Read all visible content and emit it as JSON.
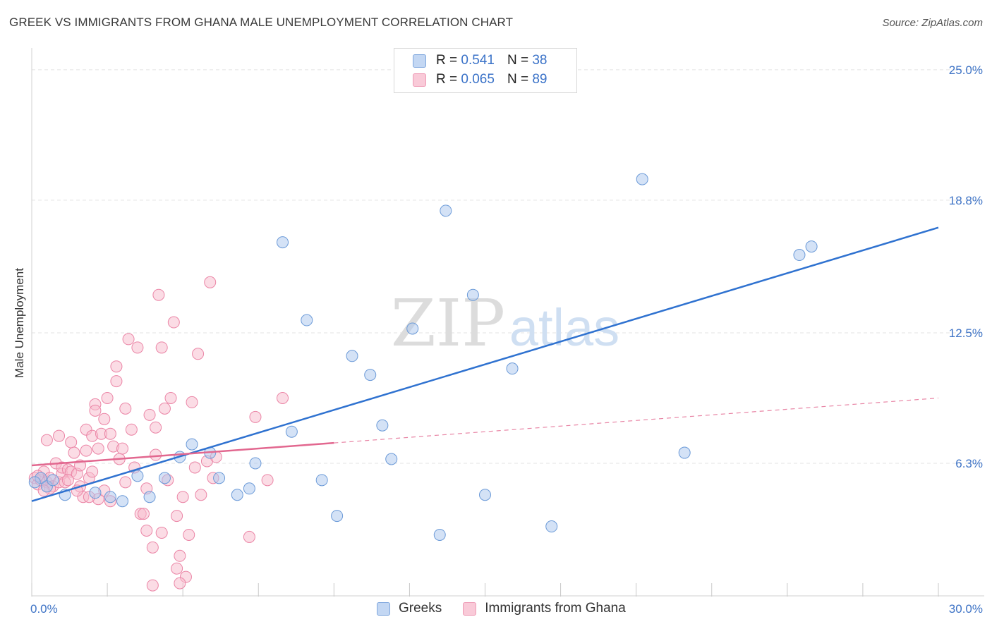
{
  "header": {
    "title": "GREEK VS IMMIGRANTS FROM GHANA MALE UNEMPLOYMENT CORRELATION CHART",
    "source": "Source: ZipAtlas.com"
  },
  "legend": {
    "rows": [
      {
        "r_label": "R =",
        "r_value": "0.541",
        "n_label": "N =",
        "n_value": "38"
      },
      {
        "r_label": "R =",
        "r_value": "0.065",
        "n_label": "N =",
        "n_value": "89"
      }
    ]
  },
  "bottom_legend": {
    "items": [
      {
        "label": "Greeks"
      },
      {
        "label": "Immigrants from Ghana"
      }
    ]
  },
  "watermark": {
    "zip": "ZIP",
    "atlas": "atlas"
  },
  "colors": {
    "blue_fill": "#a9c6ee",
    "blue_stroke": "#6b9ad8",
    "blue_line": "#2f72d0",
    "pink_fill": "#f7b9cc",
    "pink_stroke": "#eb85a6",
    "pink_line": "#e2678f",
    "grid": "#e3e3e3",
    "axis_text": "#3f74c6"
  },
  "chart_data": {
    "type": "scatter",
    "title": "GREEK VS IMMIGRANTS FROM GHANA MALE UNEMPLOYMENT CORRELATION CHART",
    "xlabel": "",
    "ylabel": "Male Unemployment",
    "xlim": [
      0,
      30
    ],
    "ylim": [
      0,
      25.8
    ],
    "x_tick_labels": [
      "0.0%",
      "30.0%"
    ],
    "y_ticks": [
      6.3,
      12.5,
      18.8,
      25.0
    ],
    "y_tick_labels": [
      "6.3%",
      "12.5%",
      "18.8%",
      "25.0%"
    ],
    "grid": true,
    "series": [
      {
        "name": "Greeks",
        "R": 0.541,
        "N": 38,
        "trendline": {
          "x": [
            0,
            30
          ],
          "y": [
            4.5,
            17.5
          ],
          "style": "solid"
        },
        "points": [
          {
            "x": 0.3,
            "y": 5.6
          },
          {
            "x": 0.5,
            "y": 5.2
          },
          {
            "x": 0.7,
            "y": 5.5
          },
          {
            "x": 1.1,
            "y": 4.8
          },
          {
            "x": 2.1,
            "y": 4.9
          },
          {
            "x": 2.6,
            "y": 4.7
          },
          {
            "x": 3.0,
            "y": 4.5
          },
          {
            "x": 3.5,
            "y": 5.7
          },
          {
            "x": 3.9,
            "y": 4.7
          },
          {
            "x": 4.4,
            "y": 5.6
          },
          {
            "x": 4.9,
            "y": 6.6
          },
          {
            "x": 5.3,
            "y": 7.2
          },
          {
            "x": 5.9,
            "y": 6.8
          },
          {
            "x": 6.2,
            "y": 5.6
          },
          {
            "x": 6.8,
            "y": 4.8
          },
          {
            "x": 7.2,
            "y": 5.1
          },
          {
            "x": 7.4,
            "y": 6.3
          },
          {
            "x": 8.3,
            "y": 16.8
          },
          {
            "x": 8.6,
            "y": 7.8
          },
          {
            "x": 9.1,
            "y": 13.1
          },
          {
            "x": 9.6,
            "y": 5.5
          },
          {
            "x": 10.1,
            "y": 3.8
          },
          {
            "x": 10.6,
            "y": 11.4
          },
          {
            "x": 11.2,
            "y": 10.5
          },
          {
            "x": 11.6,
            "y": 8.1
          },
          {
            "x": 11.9,
            "y": 6.5
          },
          {
            "x": 12.6,
            "y": 12.7
          },
          {
            "x": 13.5,
            "y": 2.9
          },
          {
            "x": 13.7,
            "y": 18.3
          },
          {
            "x": 14.6,
            "y": 14.3
          },
          {
            "x": 15.0,
            "y": 4.8
          },
          {
            "x": 15.9,
            "y": 10.8
          },
          {
            "x": 17.2,
            "y": 3.3
          },
          {
            "x": 20.2,
            "y": 19.8
          },
          {
            "x": 21.6,
            "y": 6.8
          },
          {
            "x": 25.4,
            "y": 16.2
          },
          {
            "x": 25.8,
            "y": 16.6
          },
          {
            "x": 0.1,
            "y": 5.4
          }
        ]
      },
      {
        "name": "Immigrants from Ghana",
        "R": 0.065,
        "N": 89,
        "trendline": {
          "x": [
            0,
            30
          ],
          "y": [
            6.2,
            9.4
          ],
          "solid_until_x": 10,
          "style": "solid-then-dashed"
        },
        "points": [
          {
            "x": 0.1,
            "y": 5.6
          },
          {
            "x": 0.2,
            "y": 5.3
          },
          {
            "x": 0.3,
            "y": 5.5
          },
          {
            "x": 0.4,
            "y": 5.9
          },
          {
            "x": 0.5,
            "y": 5.4
          },
          {
            "x": 0.5,
            "y": 7.4
          },
          {
            "x": 0.6,
            "y": 5.6
          },
          {
            "x": 0.7,
            "y": 5.2
          },
          {
            "x": 0.8,
            "y": 6.3
          },
          {
            "x": 0.9,
            "y": 5.4
          },
          {
            "x": 0.9,
            "y": 7.6
          },
          {
            "x": 1.0,
            "y": 5.8
          },
          {
            "x": 1.0,
            "y": 6.1
          },
          {
            "x": 1.1,
            "y": 5.4
          },
          {
            "x": 1.2,
            "y": 6.0
          },
          {
            "x": 1.3,
            "y": 5.9
          },
          {
            "x": 1.3,
            "y": 7.3
          },
          {
            "x": 1.4,
            "y": 6.8
          },
          {
            "x": 1.5,
            "y": 5.8
          },
          {
            "x": 1.6,
            "y": 5.2
          },
          {
            "x": 1.6,
            "y": 6.2
          },
          {
            "x": 1.7,
            "y": 4.7
          },
          {
            "x": 1.8,
            "y": 6.9
          },
          {
            "x": 1.8,
            "y": 7.9
          },
          {
            "x": 1.9,
            "y": 5.6
          },
          {
            "x": 2.0,
            "y": 5.9
          },
          {
            "x": 2.0,
            "y": 7.6
          },
          {
            "x": 2.1,
            "y": 9.1
          },
          {
            "x": 2.1,
            "y": 8.8
          },
          {
            "x": 2.2,
            "y": 7.0
          },
          {
            "x": 2.2,
            "y": 4.6
          },
          {
            "x": 2.3,
            "y": 7.7
          },
          {
            "x": 2.4,
            "y": 8.4
          },
          {
            "x": 2.5,
            "y": 9.4
          },
          {
            "x": 2.6,
            "y": 7.7
          },
          {
            "x": 2.7,
            "y": 7.1
          },
          {
            "x": 2.8,
            "y": 10.9
          },
          {
            "x": 2.8,
            "y": 10.2
          },
          {
            "x": 2.9,
            "y": 6.5
          },
          {
            "x": 3.0,
            "y": 7.0
          },
          {
            "x": 3.1,
            "y": 8.9
          },
          {
            "x": 3.2,
            "y": 12.2
          },
          {
            "x": 3.3,
            "y": 7.9
          },
          {
            "x": 3.4,
            "y": 6.1
          },
          {
            "x": 3.5,
            "y": 11.8
          },
          {
            "x": 3.6,
            "y": 3.9
          },
          {
            "x": 3.7,
            "y": 3.9
          },
          {
            "x": 3.8,
            "y": 5.1
          },
          {
            "x": 3.9,
            "y": 8.6
          },
          {
            "x": 4.0,
            "y": 0.5
          },
          {
            "x": 4.0,
            "y": 2.3
          },
          {
            "x": 4.1,
            "y": 6.7
          },
          {
            "x": 4.1,
            "y": 8.0
          },
          {
            "x": 4.2,
            "y": 14.3
          },
          {
            "x": 4.3,
            "y": 11.8
          },
          {
            "x": 4.4,
            "y": 8.9
          },
          {
            "x": 4.5,
            "y": 5.5
          },
          {
            "x": 4.6,
            "y": 9.4
          },
          {
            "x": 4.7,
            "y": 13.0
          },
          {
            "x": 4.8,
            "y": 1.3
          },
          {
            "x": 4.8,
            "y": 3.8
          },
          {
            "x": 4.9,
            "y": 1.9
          },
          {
            "x": 5.0,
            "y": 4.7
          },
          {
            "x": 5.1,
            "y": 0.9
          },
          {
            "x": 5.2,
            "y": 2.9
          },
          {
            "x": 5.3,
            "y": 9.2
          },
          {
            "x": 5.4,
            "y": 6.1
          },
          {
            "x": 5.5,
            "y": 11.5
          },
          {
            "x": 5.6,
            "y": 4.8
          },
          {
            "x": 5.8,
            "y": 6.4
          },
          {
            "x": 5.9,
            "y": 14.9
          },
          {
            "x": 6.0,
            "y": 5.6
          },
          {
            "x": 6.1,
            "y": 6.6
          },
          {
            "x": 7.2,
            "y": 2.8
          },
          {
            "x": 7.4,
            "y": 8.5
          },
          {
            "x": 7.8,
            "y": 5.5
          },
          {
            "x": 8.3,
            "y": 9.4
          },
          {
            "x": 3.8,
            "y": 3.1
          },
          {
            "x": 4.3,
            "y": 3.0
          },
          {
            "x": 4.9,
            "y": 0.6
          },
          {
            "x": 2.6,
            "y": 4.5
          },
          {
            "x": 3.1,
            "y": 5.4
          },
          {
            "x": 1.5,
            "y": 5.0
          },
          {
            "x": 1.2,
            "y": 5.5
          },
          {
            "x": 0.6,
            "y": 5.1
          },
          {
            "x": 0.4,
            "y": 5.0
          },
          {
            "x": 0.2,
            "y": 5.7
          },
          {
            "x": 1.9,
            "y": 4.7
          },
          {
            "x": 2.4,
            "y": 5.0
          }
        ]
      }
    ]
  }
}
